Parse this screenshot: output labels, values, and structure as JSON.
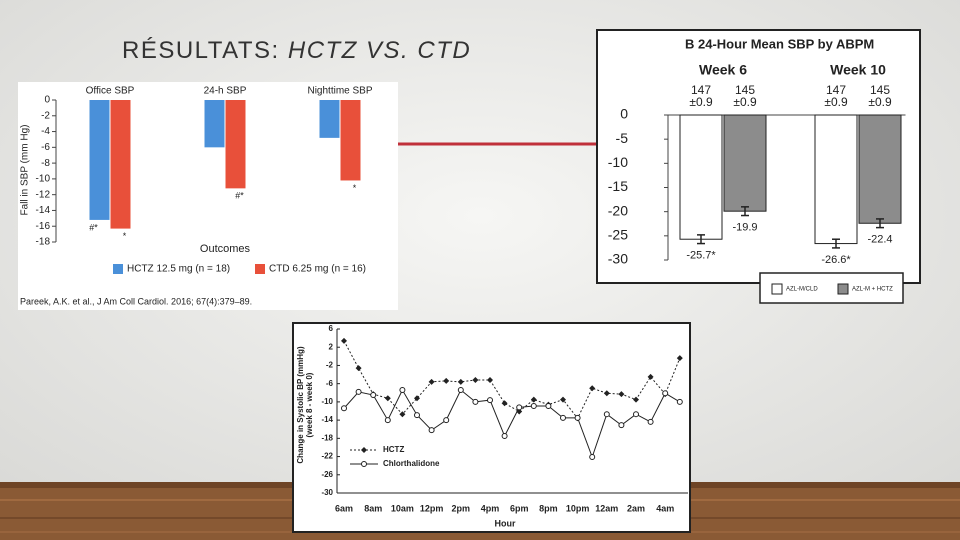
{
  "slide_title": [
    "RÉSULTATS:",
    "HCTZ VS. CTD"
  ],
  "chart_data": [
    {
      "type": "bar",
      "categories": [
        "Office SBP",
        "24-h SBP",
        "Nighttime SBP"
      ],
      "ylabel": "Fall in SBP (mm Hg)",
      "xlabel": "Outcomes",
      "ylim": [
        -18,
        0
      ],
      "yticks": [
        0,
        -2,
        -4,
        -6,
        -8,
        -10,
        -12,
        -14,
        -16,
        -18
      ],
      "series": [
        {
          "name": "HCTZ 12.5 mg (n = 18)",
          "color": "#4a90d9",
          "values": [
            -15.2,
            -6,
            -4.8
          ],
          "markers": [
            "#*",
            null,
            null
          ]
        },
        {
          "name": "CTD 6.25 mg (n = 16)",
          "color": "#e8503a",
          "values": [
            -16.3,
            -11.2,
            -10.2
          ],
          "markers": [
            "*",
            "#*",
            "*"
          ]
        }
      ],
      "source": "Pareek, A.K. et al., J Am Coll Cardiol. 2016; 67(4):379–89."
    },
    {
      "type": "bar",
      "title": "B  24-Hour Mean SBP by ABPM",
      "categories": [
        "Week 6",
        "Week 10"
      ],
      "ylim": [
        -30,
        0
      ],
      "yticks": [
        0,
        -5,
        -10,
        -15,
        -20,
        -25,
        -30
      ],
      "series": [
        {
          "name": "AZL-M/CLD",
          "color": "#ffffff",
          "values": [
            -25.7,
            -26.6
          ],
          "value_labels": [
            "-25.7*",
            "-26.6*"
          ],
          "n": [
            147,
            147
          ],
          "se": [
            0.9,
            0.9
          ],
          "se_labels": [
            "±0.9",
            "±0.9"
          ]
        },
        {
          "name": "AZL-M + HCTZ",
          "color": "#8c8c8c",
          "values": [
            -19.9,
            -22.4
          ],
          "value_labels": [
            "-19.9",
            "-22.4"
          ],
          "n": [
            145,
            145
          ],
          "se": [
            0.9,
            0.9
          ],
          "se_labels": [
            "±0.9",
            "±0.9"
          ]
        }
      ]
    },
    {
      "type": "line",
      "xlabel": "Hour",
      "ylabel": [
        "Change in Systolic BP (mmHg)",
        "(week 8 - week 0)"
      ],
      "categories": [
        "6am",
        null,
        "8am",
        null,
        "10am",
        null,
        "12pm",
        null,
        "2pm",
        null,
        "4pm",
        null,
        "6pm",
        null,
        "8pm",
        null,
        "10pm",
        null,
        "12am",
        null,
        "2am",
        null,
        "4am",
        null
      ],
      "ylim": [
        -30,
        6
      ],
      "yticks": [
        6,
        2,
        -2,
        -6,
        -10,
        -14,
        -18,
        -22,
        -26,
        -30
      ],
      "series": [
        {
          "name": "HCTZ",
          "color": "#222222",
          "marker": "diamond",
          "line_style": "dotted",
          "values": [
            3.4,
            -2.6,
            -8.3,
            -9.2,
            -12.7,
            -9.2,
            -5.6,
            -5.4,
            -5.6,
            -5.2,
            -5.2,
            -10.3,
            -12.1,
            -9.5,
            -10.6,
            -9.5,
            -13.6,
            -7.0,
            -8.1,
            -8.3,
            -9.5,
            -4.5,
            -8.3,
            -0.4
          ]
        },
        {
          "name": "Chlorthalidone",
          "color": "#222222",
          "marker": "circle",
          "line_style": "solid",
          "values": [
            -11.4,
            -7.8,
            -8.5,
            -14,
            -7.4,
            -12.9,
            -16.2,
            -14,
            -7.4,
            -10,
            -9.6,
            -17.5,
            -11.2,
            -10.9,
            -10.9,
            -13.5,
            -13.5,
            -22.1,
            -12.7,
            -15.1,
            -12.7,
            -14.4,
            -8.1,
            -10
          ]
        }
      ]
    }
  ]
}
